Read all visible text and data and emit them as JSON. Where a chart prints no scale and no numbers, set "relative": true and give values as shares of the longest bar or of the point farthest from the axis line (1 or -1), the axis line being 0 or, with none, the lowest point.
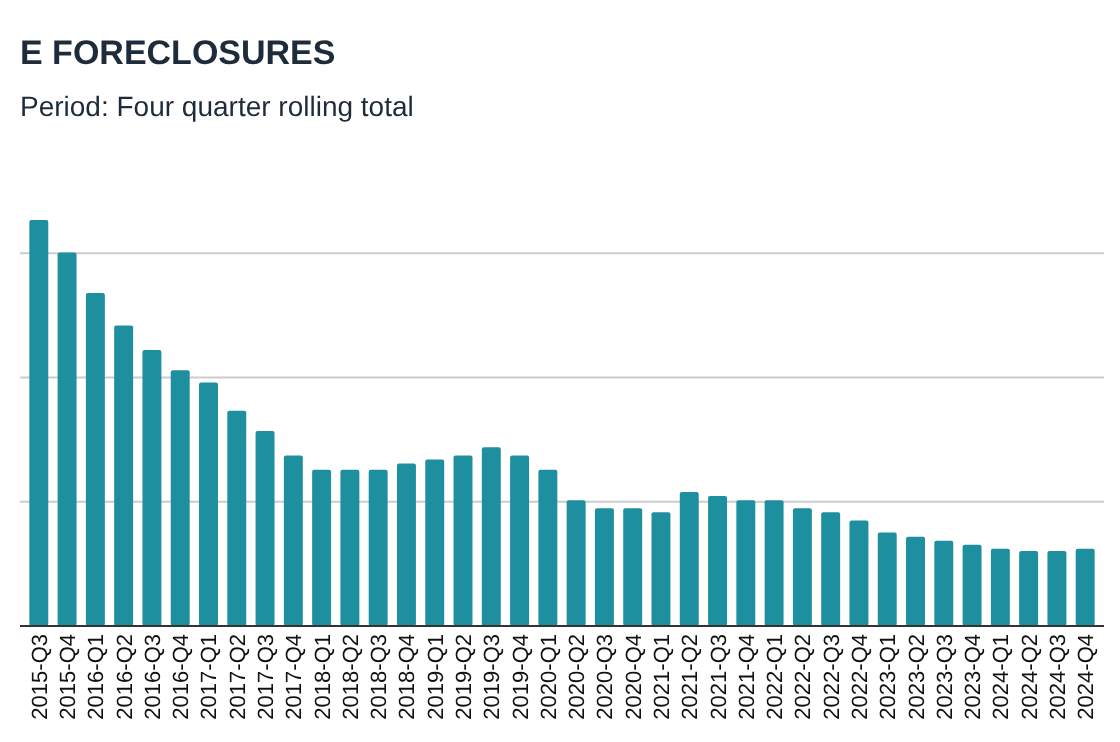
{
  "chart_data": {
    "type": "bar",
    "title": "E FORECLOSURES",
    "subtitle": "Period: Four quarter rolling total",
    "relative": true,
    "grid": "y",
    "color": "#1e8f9e",
    "categories": [
      "2015-Q3",
      "2015-Q4",
      "2016-Q1",
      "2016-Q2",
      "2016-Q3",
      "2016-Q4",
      "2017-Q1",
      "2017-Q2",
      "2017-Q3",
      "2017-Q4",
      "2018-Q1",
      "2018-Q2",
      "2018-Q3",
      "2018-Q4",
      "2019-Q1",
      "2019-Q2",
      "2019-Q3",
      "2019-Q4",
      "2020-Q1",
      "2020-Q2",
      "2020-Q3",
      "2020-Q4",
      "2021-Q1",
      "2021-Q2",
      "2021-Q3",
      "2021-Q4",
      "2022-Q1",
      "2022-Q2",
      "2022-Q3",
      "2022-Q4",
      "2023-Q1",
      "2023-Q2",
      "2023-Q3",
      "2023-Q4",
      "2024-Q1",
      "2024-Q2",
      "2024-Q3",
      "2024-Q4"
    ],
    "values": [
      1,
      0.92,
      0.82,
      0.74,
      0.68,
      0.63,
      0.6,
      0.53,
      0.48,
      0.42,
      0.385,
      0.385,
      0.385,
      0.4,
      0.41,
      0.42,
      0.44,
      0.42,
      0.385,
      0.31,
      0.29,
      0.29,
      0.28,
      0.33,
      0.32,
      0.31,
      0.31,
      0.29,
      0.28,
      0.26,
      0.23,
      0.22,
      0.21,
      0.2,
      0.19,
      0.185,
      0.185,
      0.19
    ]
  }
}
